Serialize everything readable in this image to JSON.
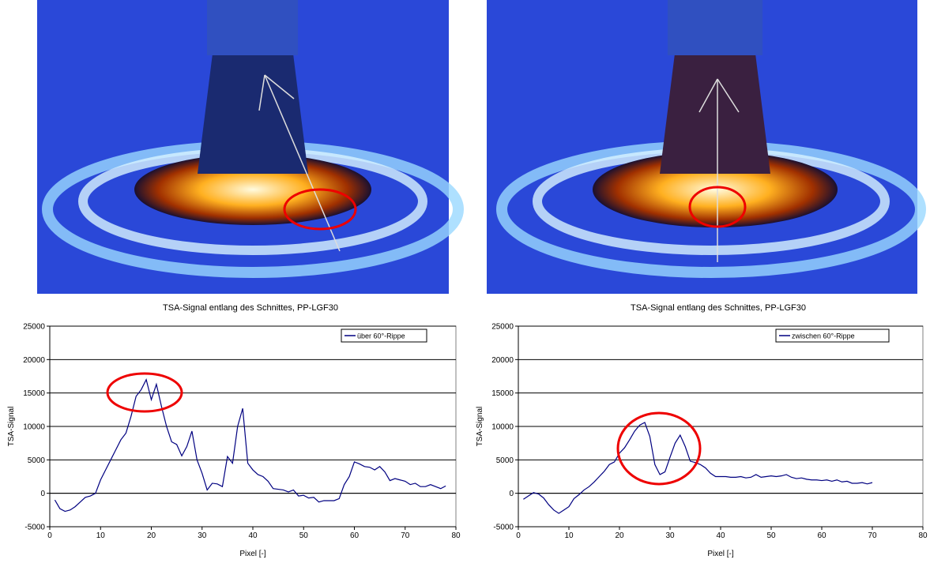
{
  "chart_data": [
    {
      "type": "line",
      "title": "TSA-Signal entlang des Schnittes, PP-LGF30",
      "xlabel": "Pixel [-]",
      "ylabel": "TSA-Signal",
      "x": [
        1,
        2,
        3,
        4,
        5,
        6,
        7,
        8,
        9,
        10,
        11,
        12,
        13,
        14,
        15,
        16,
        17,
        18,
        19,
        20,
        21,
        22,
        23,
        24,
        25,
        26,
        27,
        28,
        29,
        30,
        31,
        32,
        33,
        34,
        35,
        36,
        37,
        38,
        39,
        40,
        41,
        42,
        43,
        44,
        45,
        46,
        47,
        48,
        49,
        50,
        51,
        52,
        53,
        54,
        55,
        56,
        57,
        58,
        59,
        60,
        61,
        62,
        63,
        64,
        65,
        66,
        67,
        68,
        69,
        70,
        71,
        72,
        73,
        74,
        75,
        76,
        77,
        78
      ],
      "series": [
        {
          "name": "über 60°-Rippe",
          "color": "#000080",
          "values": [
            -1000,
            -2300,
            -2700,
            -2500,
            -2000,
            -1300,
            -600,
            -400,
            0,
            2000,
            3500,
            5000,
            6500,
            8000,
            9000,
            11500,
            14500,
            15500,
            17000,
            14000,
            16300,
            13000,
            10000,
            7700,
            7300,
            5600,
            7000,
            9300,
            5000,
            3000,
            500,
            1500,
            1400,
            1000,
            5500,
            4500,
            10000,
            12700,
            4500,
            3500,
            2800,
            2500,
            1800,
            700,
            600,
            500,
            200,
            500,
            -400,
            -300,
            -700,
            -600,
            -1300,
            -1100,
            -1100,
            -1100,
            -800,
            1300,
            2500,
            4700,
            4400,
            4000,
            3900,
            3500,
            4000,
            3200,
            1900,
            2200,
            2000,
            1800,
            1300,
            1500,
            1000,
            1000,
            1300,
            1000,
            700,
            1100
          ]
        }
      ],
      "xlim": [
        0,
        80
      ],
      "ylim": [
        -5000,
        25000
      ],
      "xticks": [
        0,
        10,
        20,
        30,
        40,
        50,
        60,
        70,
        80
      ],
      "yticks": [
        -5000,
        0,
        5000,
        10000,
        15000,
        20000,
        25000
      ],
      "grid": true
    },
    {
      "type": "line",
      "title": "TSA-Signal entlang des Schnittes, PP-LGF30",
      "xlabel": "Pixel [-]",
      "ylabel": "TSA-Signal",
      "x": [
        1,
        2,
        3,
        4,
        5,
        6,
        7,
        8,
        9,
        10,
        11,
        12,
        13,
        14,
        15,
        16,
        17,
        18,
        19,
        20,
        21,
        22,
        23,
        24,
        25,
        26,
        27,
        28,
        29,
        30,
        31,
        32,
        33,
        34,
        35,
        36,
        37,
        38,
        39,
        40,
        41,
        42,
        43,
        44,
        45,
        46,
        47,
        48,
        49,
        50,
        51,
        52,
        53,
        54,
        55,
        56,
        57,
        58,
        59,
        60,
        61,
        62,
        63,
        64,
        65,
        66,
        67,
        68,
        69,
        70
      ],
      "series": [
        {
          "name": "zwischen 60°-Rippe",
          "color": "#000080",
          "values": [
            -900,
            -400,
            100,
            -100,
            -700,
            -1700,
            -2500,
            -3000,
            -2500,
            -2000,
            -800,
            -200,
            500,
            1000,
            1700,
            2500,
            3300,
            4300,
            4700,
            6000,
            6800,
            8000,
            9300,
            10200,
            10600,
            8500,
            4300,
            2800,
            3200,
            5400,
            7500,
            8700,
            7000,
            4800,
            4600,
            4300,
            3800,
            3000,
            2500,
            2500,
            2500,
            2400,
            2400,
            2500,
            2300,
            2400,
            2800,
            2400,
            2500,
            2600,
            2500,
            2600,
            2800,
            2400,
            2200,
            2300,
            2100,
            2000,
            2000,
            1900,
            2000,
            1800,
            2000,
            1700,
            1800,
            1500,
            1500,
            1600,
            1400,
            1600
          ]
        }
      ],
      "xlim": [
        0,
        80
      ],
      "ylim": [
        -5000,
        25000
      ],
      "xticks": [
        0,
        10,
        20,
        30,
        40,
        50,
        60,
        70,
        80
      ],
      "yticks": [
        -5000,
        0,
        5000,
        10000,
        15000,
        20000,
        25000
      ],
      "grid": true
    }
  ]
}
